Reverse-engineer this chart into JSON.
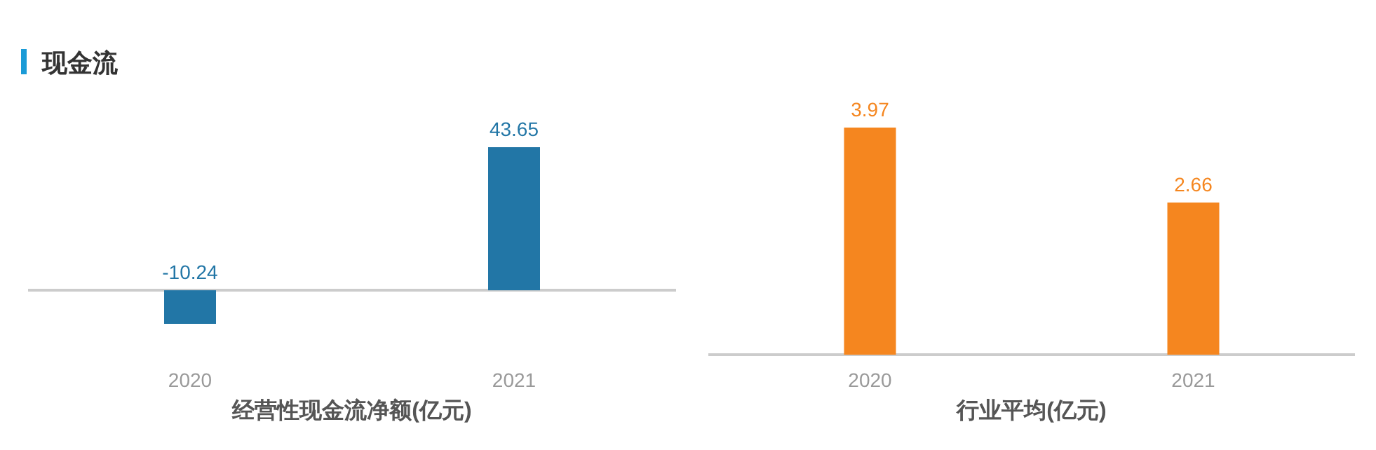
{
  "chart_data": [
    {
      "type": "bar",
      "title": "现金流",
      "categories": [
        "2020",
        "2021"
      ],
      "xlabel": "经营性现金流净额(亿元)",
      "data_labels": true,
      "series": [
        {
          "color": "#2276a6",
          "values": [
            -10.24,
            43.65
          ]
        }
      ]
    },
    {
      "type": "bar",
      "categories": [
        "2020",
        "2021"
      ],
      "xlabel": "行业平均(亿元)",
      "data_labels": true,
      "series": [
        {
          "color": "#f5861f",
          "values": [
            3.97,
            2.66
          ]
        }
      ]
    }
  ]
}
